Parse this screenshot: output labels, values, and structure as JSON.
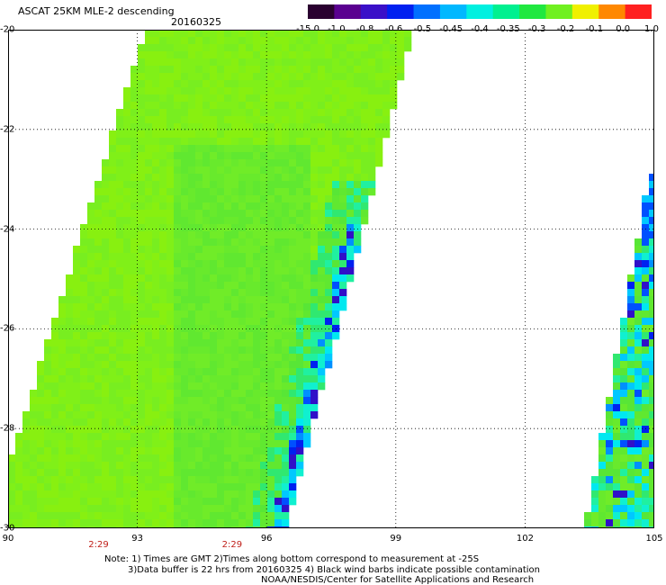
{
  "title": "ASCAT 25KM MLE-2 descending",
  "date": "20160325",
  "colorbar": {
    "labels": [
      "-15.0",
      "-1.0",
      "-0.8",
      "-0.6",
      "-0.5",
      "-0.45",
      "-0.4",
      "-0.35",
      "-0.3",
      "-0.2",
      "-0.1",
      "0.0",
      "1.0"
    ],
    "colors": [
      "#2a0030",
      "#5a0090",
      "#3a10c8",
      "#0020f0",
      "#0070ff",
      "#00b8ff",
      "#00f0e0",
      "#00f090",
      "#20e840",
      "#70f020",
      "#f0f000",
      "#ff8800",
      "#ff2020"
    ]
  },
  "map": {
    "lat_labels": [
      "-20",
      "-22",
      "-24",
      "-26",
      "-28",
      "-30"
    ],
    "lon_labels": [
      "90",
      "93",
      "96",
      "99",
      "102",
      "105"
    ],
    "lat_range": [
      -30,
      -20
    ],
    "lon_range": [
      90,
      105
    ],
    "time_labels": [
      "2:29",
      "2:29"
    ],
    "time_label_lons": [
      92.1,
      95.2
    ]
  },
  "notes": {
    "line1": "Note: 1) Times are GMT 2)Times along bottom correspond to measurement at -25S",
    "line2": "3)Data buffer is 22 hrs from 20160325 4) Black wind barbs indicate possible contamination",
    "line3": "NOAA/NESDIS/Center for Satellite Applications and Research"
  }
}
